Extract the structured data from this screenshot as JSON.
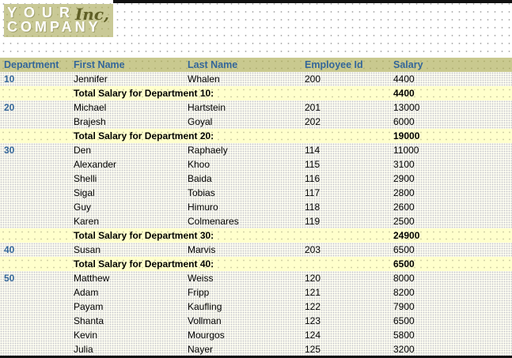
{
  "logo": {
    "line1": "YOUR",
    "line2": "COMPANY",
    "suffix": "Inc,"
  },
  "report": {
    "columns": [
      "Department",
      "First Name",
      "Last Name",
      "Employee Id",
      "Salary"
    ],
    "groups": [
      {
        "department": "10",
        "employees": [
          {
            "first": "Jennifer",
            "last": "Whalen",
            "id": "200",
            "salary": "4400"
          }
        ],
        "total_label": "Total Salary for Department 10:",
        "total": "4400"
      },
      {
        "department": "20",
        "employees": [
          {
            "first": "Michael",
            "last": "Hartstein",
            "id": "201",
            "salary": "13000"
          },
          {
            "first": "Brajesh",
            "last": "Goyal",
            "id": "202",
            "salary": "6000"
          }
        ],
        "total_label": "Total Salary for Department 20:",
        "total": "19000"
      },
      {
        "department": "30",
        "employees": [
          {
            "first": "Den",
            "last": "Raphaely",
            "id": "114",
            "salary": "11000"
          },
          {
            "first": "Alexander",
            "last": "Khoo",
            "id": "115",
            "salary": "3100"
          },
          {
            "first": "Shelli",
            "last": "Baida",
            "id": "116",
            "salary": "2900"
          },
          {
            "first": "Sigal",
            "last": "Tobias",
            "id": "117",
            "salary": "2800"
          },
          {
            "first": "Guy",
            "last": "Himuro",
            "id": "118",
            "salary": "2600"
          },
          {
            "first": "Karen",
            "last": "Colmenares",
            "id": "119",
            "salary": "2500"
          }
        ],
        "total_label": "Total Salary for Department 30:",
        "total": "24900"
      },
      {
        "department": "40",
        "employees": [
          {
            "first": "Susan",
            "last": "Marvis",
            "id": "203",
            "salary": "6500"
          }
        ],
        "total_label": "Total Salary for Department 40:",
        "total": "6500"
      },
      {
        "department": "50",
        "employees": [
          {
            "first": "Matthew",
            "last": "Weiss",
            "id": "120",
            "salary": "8000"
          },
          {
            "first": "Adam",
            "last": "Fripp",
            "id": "121",
            "salary": "8200"
          },
          {
            "first": "Payam",
            "last": "Kaufling",
            "id": "122",
            "salary": "7900"
          },
          {
            "first": "Shanta",
            "last": "Vollman",
            "id": "123",
            "salary": "6500"
          },
          {
            "first": "Kevin",
            "last": "Mourgos",
            "id": "124",
            "salary": "5800"
          },
          {
            "first": "Julia",
            "last": "Nayer",
            "id": "125",
            "salary": "3200"
          }
        ]
      }
    ]
  },
  "colors": {
    "header_band": "#c9c98f",
    "logo_background": "#c9c996",
    "logo_suffix_text": "#5f5f26",
    "accent_blue": "#336699",
    "total_row_background": "#ffffcc",
    "rule_black": "#111111"
  }
}
